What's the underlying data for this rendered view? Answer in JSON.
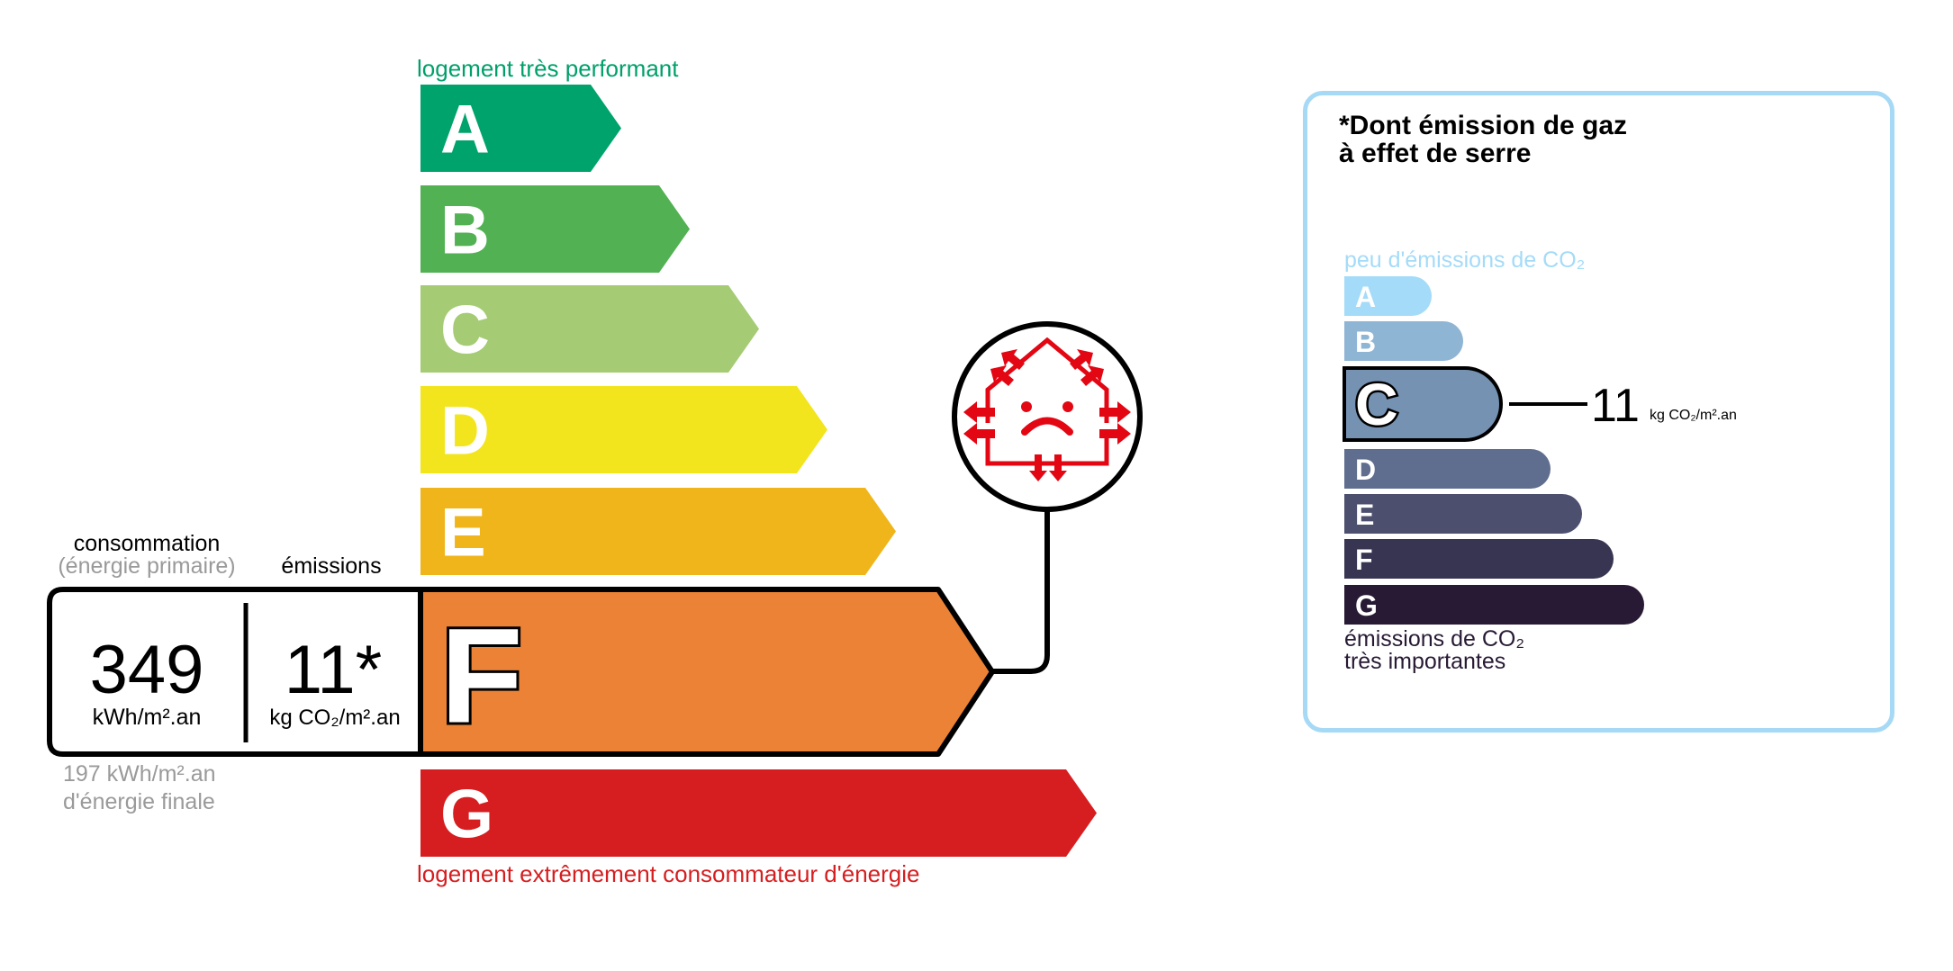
{
  "energy": {
    "top_label": "logement très performant",
    "bottom_label": "logement extrêmement consommateur d'énergie",
    "classes": [
      {
        "letter": "A",
        "color": "#00a36c"
      },
      {
        "letter": "B",
        "color": "#52b153"
      },
      {
        "letter": "C",
        "color": "#a5cc74"
      },
      {
        "letter": "D",
        "color": "#f2e51e"
      },
      {
        "letter": "E",
        "color": "#f0b51a"
      },
      {
        "letter": "F",
        "color": "#eb8235"
      },
      {
        "letter": "G",
        "color": "#d61e20"
      }
    ],
    "current_class": "F",
    "consumption_header": "consommation",
    "consumption_sub": "(énergie primaire)",
    "emissions_header": "émissions",
    "consumption_value": "349",
    "consumption_unit": "kWh/m².an",
    "emissions_value": "11*",
    "emissions_unit": "kg CO₂/m².an",
    "final_energy_value": "197 kWh/m².an",
    "final_energy_label": "d'énergie finale",
    "icon": "poorly-insulated-house-sad-face-icon"
  },
  "ghg": {
    "title_line1": "*Dont émission de gaz",
    "title_line2": "à effet de serre",
    "top_label": "peu d'émissions de CO₂",
    "bottom_label_line1": "émissions de CO₂",
    "bottom_label_line2": "très importantes",
    "classes": [
      {
        "letter": "A",
        "color": "#a4dbf8"
      },
      {
        "letter": "B",
        "color": "#8fb5d5"
      },
      {
        "letter": "C",
        "color": "#7592b3"
      },
      {
        "letter": "D",
        "color": "#5f6d8f"
      },
      {
        "letter": "E",
        "color": "#4c4f6e"
      },
      {
        "letter": "F",
        "color": "#383552"
      },
      {
        "letter": "G",
        "color": "#281a34"
      }
    ],
    "current_class": "C",
    "value": "11",
    "unit": "kg CO₂/m².an",
    "border_color": "#a6d9f5"
  }
}
